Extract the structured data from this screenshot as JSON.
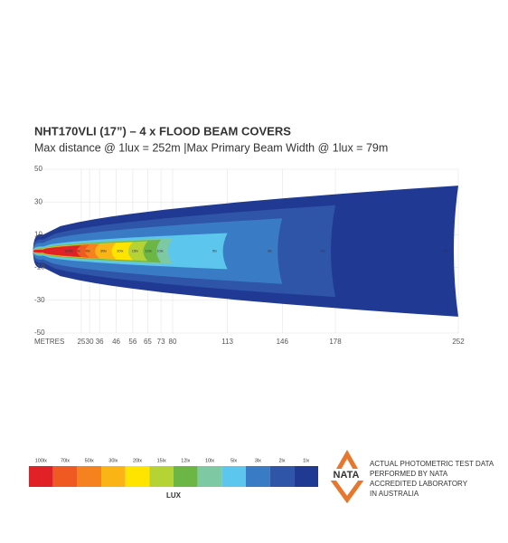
{
  "chart_data": {
    "type": "beam",
    "title": "NHT170VLI (17”) – 4 x FLOOD BEAM COVERS",
    "subtitle": "Max distance @ 1lux = 252m  |Max Primary  Beam Width @ 1lux = 79m",
    "x_label": "METRES",
    "xlim": [
      0,
      252
    ],
    "xticks": [
      25,
      30,
      36,
      46,
      56,
      65,
      73,
      80,
      113,
      146,
      178,
      252
    ],
    "ylim": [
      -50,
      50
    ],
    "yticks": [
      50,
      30,
      10,
      -10,
      -30,
      -50
    ],
    "grid": true,
    "legend_title": "LUX",
    "zones": [
      {
        "name": "1lx",
        "color": "#203a93",
        "x_end": 252,
        "half_width": 40
      },
      {
        "name": "2lx",
        "color": "#2f55a8",
        "x_end": 178,
        "half_width": 28
      },
      {
        "name": "3lx",
        "color": "#3a7bc6",
        "x_end": 146,
        "half_width": 20
      },
      {
        "name": "5lx",
        "color": "#5cc6ec",
        "x_end": 113,
        "half_width": 11
      },
      {
        "name": "10lx",
        "color": "#7cc9a3",
        "x_end": 80,
        "half_width": 8
      },
      {
        "name": "12lx",
        "color": "#6cb646",
        "x_end": 73,
        "half_width": 7
      },
      {
        "name": "15lx",
        "color": "#b6d336",
        "x_end": 65,
        "half_width": 6
      },
      {
        "name": "20lx",
        "color": "#ffe400",
        "x_end": 56,
        "half_width": 5.5
      },
      {
        "name": "30lx",
        "color": "#fbb415",
        "x_end": 46,
        "half_width": 5
      },
      {
        "name": "50lx",
        "color": "#f5821f",
        "x_end": 36,
        "half_width": 4.5
      },
      {
        "name": "70lx",
        "color": "#ef5a22",
        "x_end": 30,
        "half_width": 4
      },
      {
        "name": "100lx",
        "color": "#e02226",
        "x_end": 25,
        "half_width": 3.5
      }
    ],
    "badge": "NATA",
    "notice": [
      "ACTUAL PHOTOMETRIC TEST DATA",
      "PERFORMED BY NATA",
      "ACCREDITED LABORATORY",
      "IN AUSTRALIA"
    ]
  }
}
